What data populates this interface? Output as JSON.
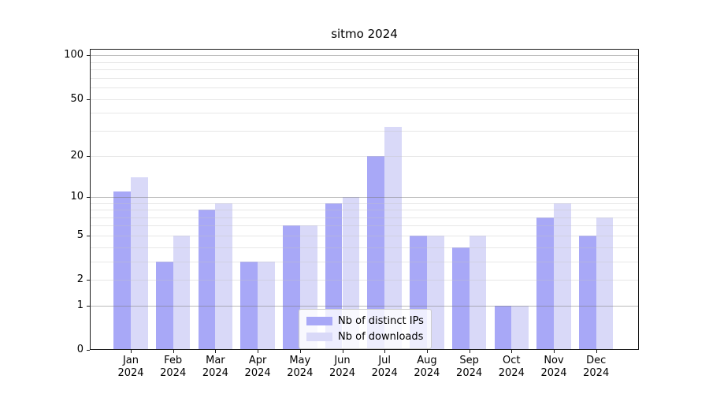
{
  "chart_data": {
    "type": "bar",
    "title": "sitmo 2024",
    "xlabel": "",
    "ylabel": "",
    "categories": [
      "Jan",
      "Feb",
      "Mar",
      "Apr",
      "May",
      "Jun",
      "Jul",
      "Aug",
      "Sep",
      "Oct",
      "Nov",
      "Dec"
    ],
    "year_label": "2024",
    "series": [
      {
        "name": "Nb of distinct IPs",
        "color": "#a8a8f7",
        "values": [
          11,
          3,
          8,
          3,
          6,
          9,
          20,
          5,
          4,
          1,
          7,
          5
        ]
      },
      {
        "name": "Nb of downloads",
        "color": "#d9d9f8",
        "values": [
          14,
          5,
          9,
          3,
          6,
          10,
          32,
          5,
          5,
          1,
          9,
          7
        ]
      }
    ],
    "y_axis": {
      "scale": "log1p",
      "tick_labels": [
        0,
        1,
        2,
        5,
        10,
        20,
        50,
        100
      ],
      "major_gridlines": [
        1,
        10,
        100
      ],
      "minor_gridlines": [
        2,
        3,
        4,
        5,
        6,
        7,
        8,
        9,
        20,
        30,
        40,
        50,
        60,
        70,
        80,
        90
      ],
      "bottom_value": 0,
      "top_value": 111
    },
    "legend": {
      "position": "lower-center",
      "entries": [
        "Nb of distinct IPs",
        "Nb of downloads"
      ]
    },
    "grid": true
  }
}
